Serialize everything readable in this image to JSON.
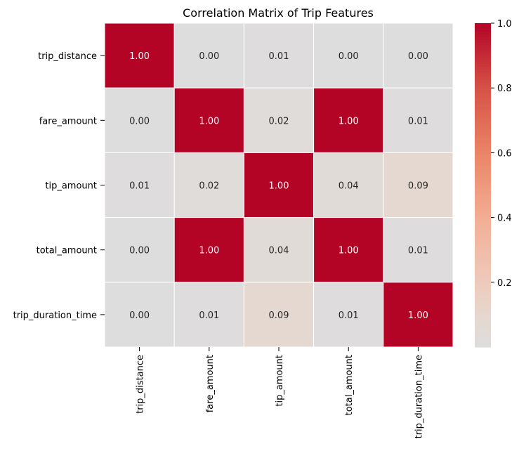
{
  "chart_data": {
    "type": "heatmap",
    "title": "Correlation Matrix of Trip Features",
    "rows": [
      "trip_distance",
      "fare_amount",
      "tip_amount",
      "total_amount",
      "trip_duration_time"
    ],
    "cols": [
      "trip_distance",
      "fare_amount",
      "tip_amount",
      "total_amount",
      "trip_duration_time"
    ],
    "values": [
      [
        1.0,
        0.0,
        0.01,
        0.0,
        0.0
      ],
      [
        0.0,
        1.0,
        0.02,
        1.0,
        0.01
      ],
      [
        0.01,
        0.02,
        1.0,
        0.04,
        0.09
      ],
      [
        0.0,
        1.0,
        0.04,
        1.0,
        0.01
      ],
      [
        0.0,
        0.01,
        0.09,
        0.01,
        1.0
      ]
    ],
    "value_format": "0.00",
    "colormap": "coolwarm",
    "center": 0,
    "colorbar": {
      "range": [
        0.0,
        1.0
      ],
      "ticks": [
        0.2,
        0.4,
        0.6,
        0.8,
        1.0
      ],
      "tick_labels": [
        "0.2",
        "0.4",
        "0.6",
        "0.8",
        "1.0"
      ]
    },
    "cell_border_color": "#ffffff",
    "annotation_colors": {
      "dark": "#262626",
      "light": "#ffffff"
    }
  }
}
